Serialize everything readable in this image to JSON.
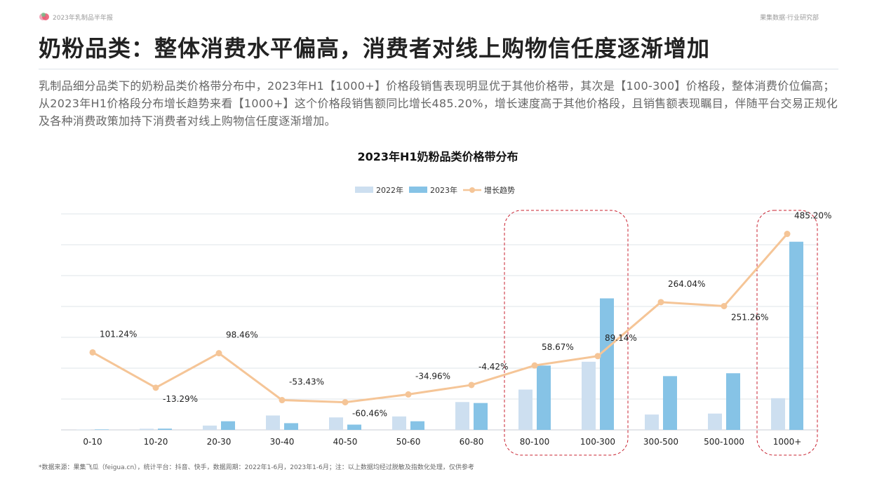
{
  "header": {
    "report_name": "2023年乳制品半年报",
    "brand": "果集数据·行业研究部"
  },
  "page_title": "奶粉品类：整体消费水平偏高，消费者对线上购物信任度逐渐增加",
  "summary": "乳制品细分品类下的奶粉品类价格带分布中，2023年H1【1000+】价格段销售表现明显优于其他价格带，其次是【100-300】价格段，整体消费价位偏高；从2023年H1价格段分布增长趋势来看【1000+】这个价格段销售额同比增长485.20%，增长速度高于其他价格段，且销售额表现瞩目，伴随平台交易正规化及各种消费政策加持下消费者对线上购物信任度逐渐增加。",
  "footnote": "*数据来源：果集飞瓜（feigua.cn），统计平台：抖音、快手，数据周期：2022年1-6月，2023年1-6月；注：以上数据均经过脱敏及指数化处理，仅供参考",
  "colors": {
    "series_2022": "#cddff0",
    "series_2023": "#86c3e6",
    "trend": "#f5c597",
    "highlight": "#c8202f",
    "grid": "#dfe4ea"
  },
  "chart_data": {
    "type": "bar",
    "title": "2023年H1奶粉品类价格带分布",
    "legend_position": "top-center",
    "grid": true,
    "categories": [
      "0-10",
      "10-20",
      "20-30",
      "30-40",
      "40-50",
      "50-60",
      "60-80",
      "80-100",
      "100-300",
      "300-500",
      "500-1000",
      "1000+"
    ],
    "series": [
      {
        "name": "2022年",
        "type": "bar",
        "values": [
          0.3,
          1.2,
          4.5,
          15,
          13,
          14,
          29,
          42,
          71,
          16,
          17,
          33
        ]
      },
      {
        "name": "2023年",
        "type": "bar",
        "values": [
          0.5,
          1.3,
          9,
          7,
          5.5,
          9,
          28,
          67,
          137,
          56,
          59,
          196
        ]
      },
      {
        "name": "增长趋势",
        "type": "line",
        "values": [
          101.24,
          -13.29,
          98.46,
          -53.43,
          -60.46,
          -34.96,
          -4.42,
          58.67,
          89.14,
          264.04,
          251.26,
          485.2
        ]
      }
    ],
    "trend_labels": [
      "101.24%",
      "-13.29%",
      "98.46%",
      "-53.43%",
      "-60.46%",
      "-34.96%",
      "-4.42%",
      "58.67%",
      "89.14%",
      "264.04%",
      "251.26%",
      "485.20%"
    ],
    "bar_axis_range": [
      0,
      225
    ],
    "trend_axis_range": [
      -150,
      550
    ],
    "highlighted_categories": [
      "80-100",
      "100-300",
      "1000+"
    ]
  }
}
